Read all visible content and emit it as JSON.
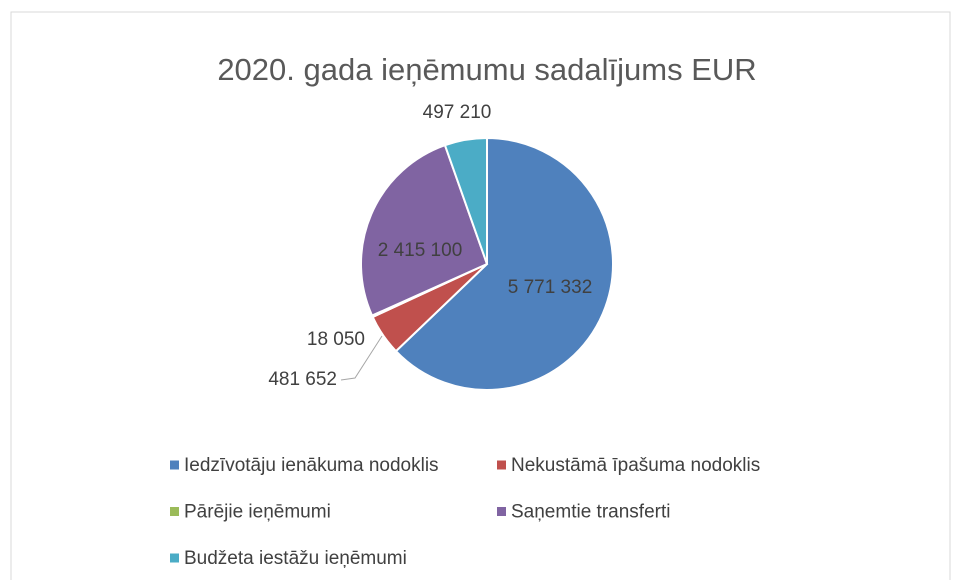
{
  "chart_data": {
    "type": "pie",
    "title": "2020. gada ieņēmumu sadalījums EUR",
    "categories": [
      "Iedzīvotāju ienākuma nodoklis",
      "Nekustāmā īpašuma nodoklis",
      "Pārējie ieņēmumi",
      "Saņemtie transferti",
      "Budžeta iestāžu ieņēmumi"
    ],
    "values": [
      5771332,
      481652,
      18050,
      2415100,
      497210
    ],
    "value_labels": [
      "5 771 332",
      "481 652",
      "18 050",
      "2 415 100",
      "497 210"
    ],
    "colors": [
      "#4f81bd",
      "#c0504d",
      "#9bbb59",
      "#8064a2",
      "#4bacc6"
    ],
    "legend": "bottom"
  }
}
